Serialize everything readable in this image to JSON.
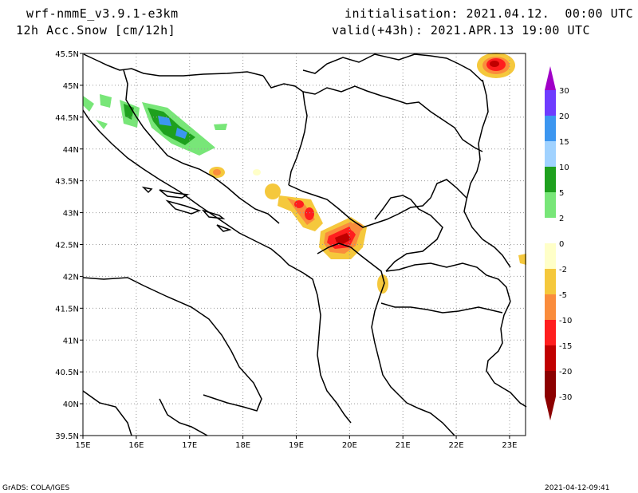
{
  "header": {
    "model": "wrf-nmmE_v3.9.1-e3km",
    "field": "12h Acc.Snow [cm/12h]",
    "init": "initialisation: 2021.04.12.  00:00 UTC",
    "valid": "valid(+43h): 2021.APR.13 19:00 UTC"
  },
  "footer": {
    "credit": "GrADS: COLA/IGES",
    "timestamp": "2021-04-12-09:41"
  },
  "map": {
    "lon_labels": [
      "15E",
      "16E",
      "17E",
      "18E",
      "19E",
      "20E",
      "21E",
      "22E",
      "23E"
    ],
    "lat_labels": [
      "45.5N",
      "45N",
      "44.5N",
      "44N",
      "43.5N",
      "43N",
      "42.5N",
      "42N",
      "41.5N",
      "41N",
      "40.5N",
      "40N",
      "39.5N"
    ],
    "lon_range": [
      15.0,
      23.3
    ],
    "lat_range": [
      39.5,
      45.5
    ]
  },
  "legend": {
    "labels": [
      "30",
      "20",
      "15",
      "10",
      "5",
      "2",
      "0",
      "-2",
      "-5",
      "-10",
      "-15",
      "-20",
      "-30"
    ],
    "colors": [
      "#a000c8",
      "#6e3cff",
      "#3c96f0",
      "#a0d2ff",
      "#1ea01e",
      "#78e678",
      "#ffffff",
      "#ffffc8",
      "#f5c83c",
      "#fa8c3c",
      "#ff1e1e",
      "#c00000",
      "#8c0000"
    ]
  }
}
